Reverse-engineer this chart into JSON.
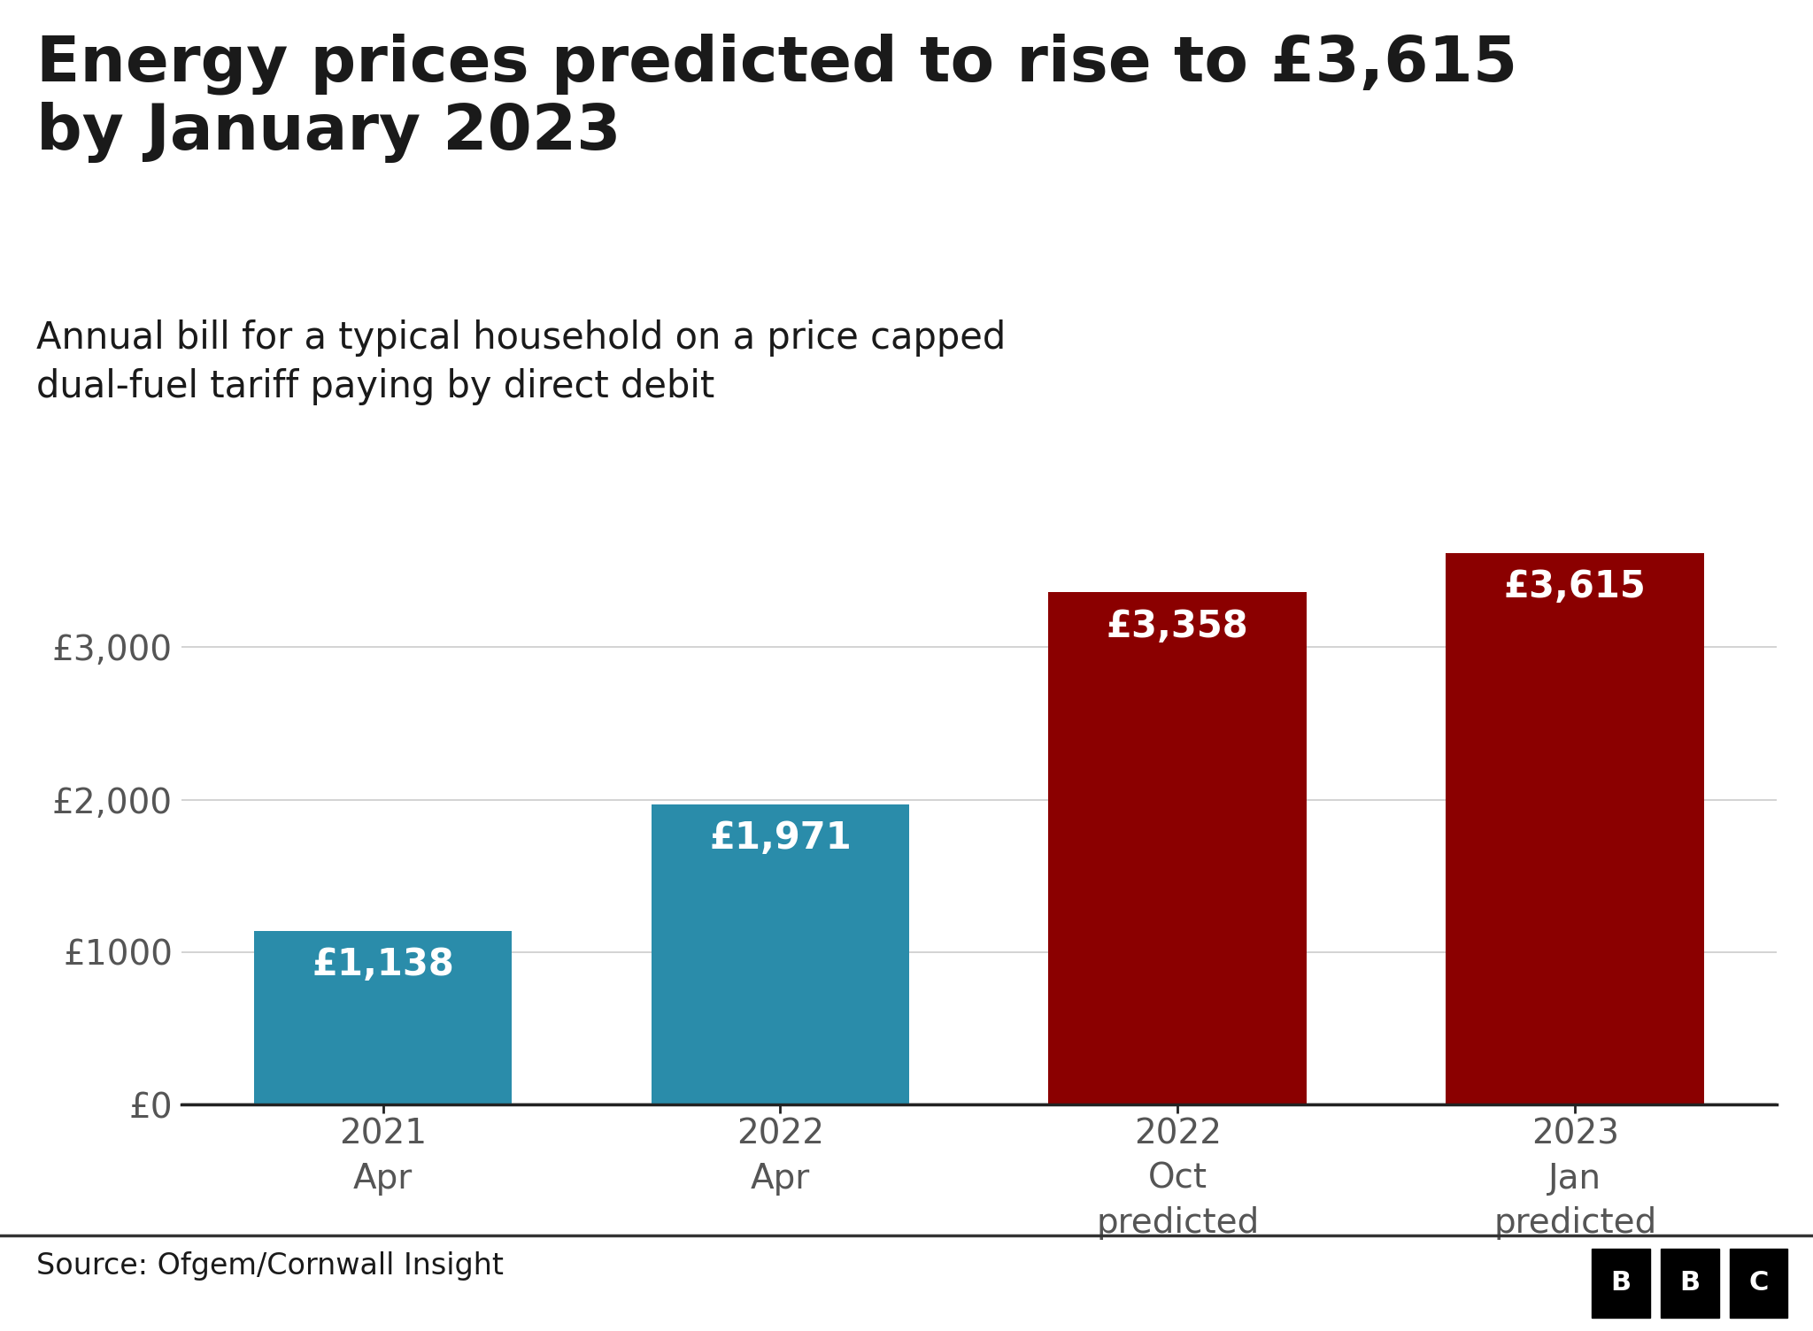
{
  "title": "Energy prices predicted to rise to £3,615\nby January 2023",
  "subtitle": "Annual bill for a typical household on a price capped\ndual-fuel tariff paying by direct debit",
  "categories": [
    "2021\nApr",
    "2022\nApr",
    "2022\nOct\npredicted",
    "2023\nJan\npredicted"
  ],
  "values": [
    1138,
    1971,
    3358,
    3615
  ],
  "bar_colors": [
    "#2a8caa",
    "#2a8caa",
    "#8b0000",
    "#8b0000"
  ],
  "bar_labels": [
    "£1,138",
    "£1,971",
    "£3,358",
    "£3,615"
  ],
  "y_ticks": [
    0,
    1000,
    2000,
    3000
  ],
  "y_tick_labels": [
    "£0",
    "£1000",
    "£2,000",
    "£3,000"
  ],
  "ylim": [
    0,
    4100
  ],
  "source_text": "Source: Ofgem/Cornwall Insight",
  "background_color": "#ffffff",
  "title_fontsize": 52,
  "subtitle_fontsize": 30,
  "label_fontsize": 30,
  "tick_fontsize": 28,
  "source_fontsize": 24,
  "grid_color": "#cccccc",
  "axis_color": "#222222",
  "text_color": "#1a1a1a"
}
